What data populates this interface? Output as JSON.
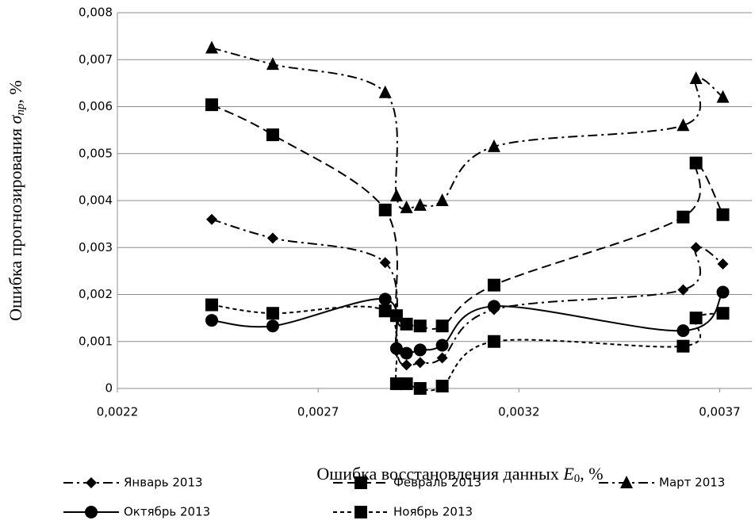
{
  "chart_data": {
    "type": "line",
    "x_label": {
      "text": "Ошибка восстановления данных ",
      "symbol": "E",
      "subscript": "0",
      "unit": ", %"
    },
    "y_label": {
      "text": "Ошибка прогнозирования ",
      "symbol": "σ",
      "subscript": "пр",
      "unit": ", %"
    },
    "xlim": [
      0.0022,
      0.00378
    ],
    "ylim": [
      0,
      0.008
    ],
    "xticks": [
      {
        "value": 0.0022,
        "label": "0,0022"
      },
      {
        "value": 0.0027,
        "label": "0,0027"
      },
      {
        "value": 0.0032,
        "label": "0,0032"
      },
      {
        "value": 0.0037,
        "label": "0,0037"
      }
    ],
    "yticks": [
      {
        "value": 0,
        "label": "0"
      },
      {
        "value": 0.001,
        "label": "0,001"
      },
      {
        "value": 0.002,
        "label": "0,002"
      },
      {
        "value": 0.003,
        "label": "0,003"
      },
      {
        "value": 0.004,
        "label": "0,004"
      },
      {
        "value": 0.005,
        "label": "0,005"
      },
      {
        "value": 0.006,
        "label": "0,006"
      },
      {
        "value": 0.007,
        "label": "0,007"
      },
      {
        "value": 0.008,
        "label": "0,008"
      }
    ],
    "grid": true,
    "series": [
      {
        "name": "Январь 2013",
        "color": "#000000",
        "marker": "diamond",
        "dash": "dashdot",
        "x": [
          0.002435,
          0.002587,
          0.002867,
          0.002895,
          0.00292,
          0.002954,
          0.003009,
          0.003138,
          0.003609,
          0.003641,
          0.003708
        ],
        "values": [
          0.0036,
          0.0032,
          0.00268,
          0.0008,
          0.0005,
          0.00055,
          0.00065,
          0.00168,
          0.0021,
          0.003,
          0.00265
        ]
      },
      {
        "name": "Февраль 2013",
        "color": "#000000",
        "marker": "square",
        "dash": "dash",
        "x": [
          0.002435,
          0.002587,
          0.002867,
          0.002895,
          0.00292,
          0.002954,
          0.003009,
          0.003138,
          0.003609,
          0.003641,
          0.003708
        ],
        "values": [
          0.00604,
          0.0054,
          0.0038,
          0.00155,
          0.00137,
          0.00133,
          0.00133,
          0.0022,
          0.00365,
          0.0048,
          0.0037
        ]
      },
      {
        "name": "Март 2013",
        "color": "#000000",
        "marker": "triangle",
        "dash": "dashdot",
        "x": [
          0.002435,
          0.002587,
          0.002867,
          0.002895,
          0.00292,
          0.002954,
          0.003009,
          0.003138,
          0.003609,
          0.003641,
          0.003708
        ],
        "values": [
          0.00725,
          0.0069,
          0.0063,
          0.0041,
          0.00385,
          0.0039,
          0.004,
          0.00515,
          0.0056,
          0.0066,
          0.0062
        ]
      },
      {
        "name": "Октябрь 2013",
        "color": "#000000",
        "marker": "circle",
        "dash": "solid",
        "x": [
          0.002435,
          0.002587,
          0.002867,
          0.002895,
          0.00292,
          0.002954,
          0.003009,
          0.003138,
          0.003609,
          0.003708
        ],
        "values": [
          0.00145,
          0.00133,
          0.0019,
          0.00085,
          0.00075,
          0.00082,
          0.00092,
          0.00175,
          0.00123,
          0.00205
        ]
      },
      {
        "name": "Ноябрь 2013",
        "color": "#000000",
        "marker": "square",
        "dash": "shortdash",
        "x": [
          0.002435,
          0.002587,
          0.002867,
          0.002895,
          0.00292,
          0.002954,
          0.003009,
          0.003138,
          0.003609,
          0.003641,
          0.003708
        ],
        "values": [
          0.00178,
          0.0016,
          0.00165,
          0.0001,
          0.0001,
          0.0,
          5e-05,
          0.001,
          0.0009,
          0.0015,
          0.0016
        ]
      }
    ]
  }
}
